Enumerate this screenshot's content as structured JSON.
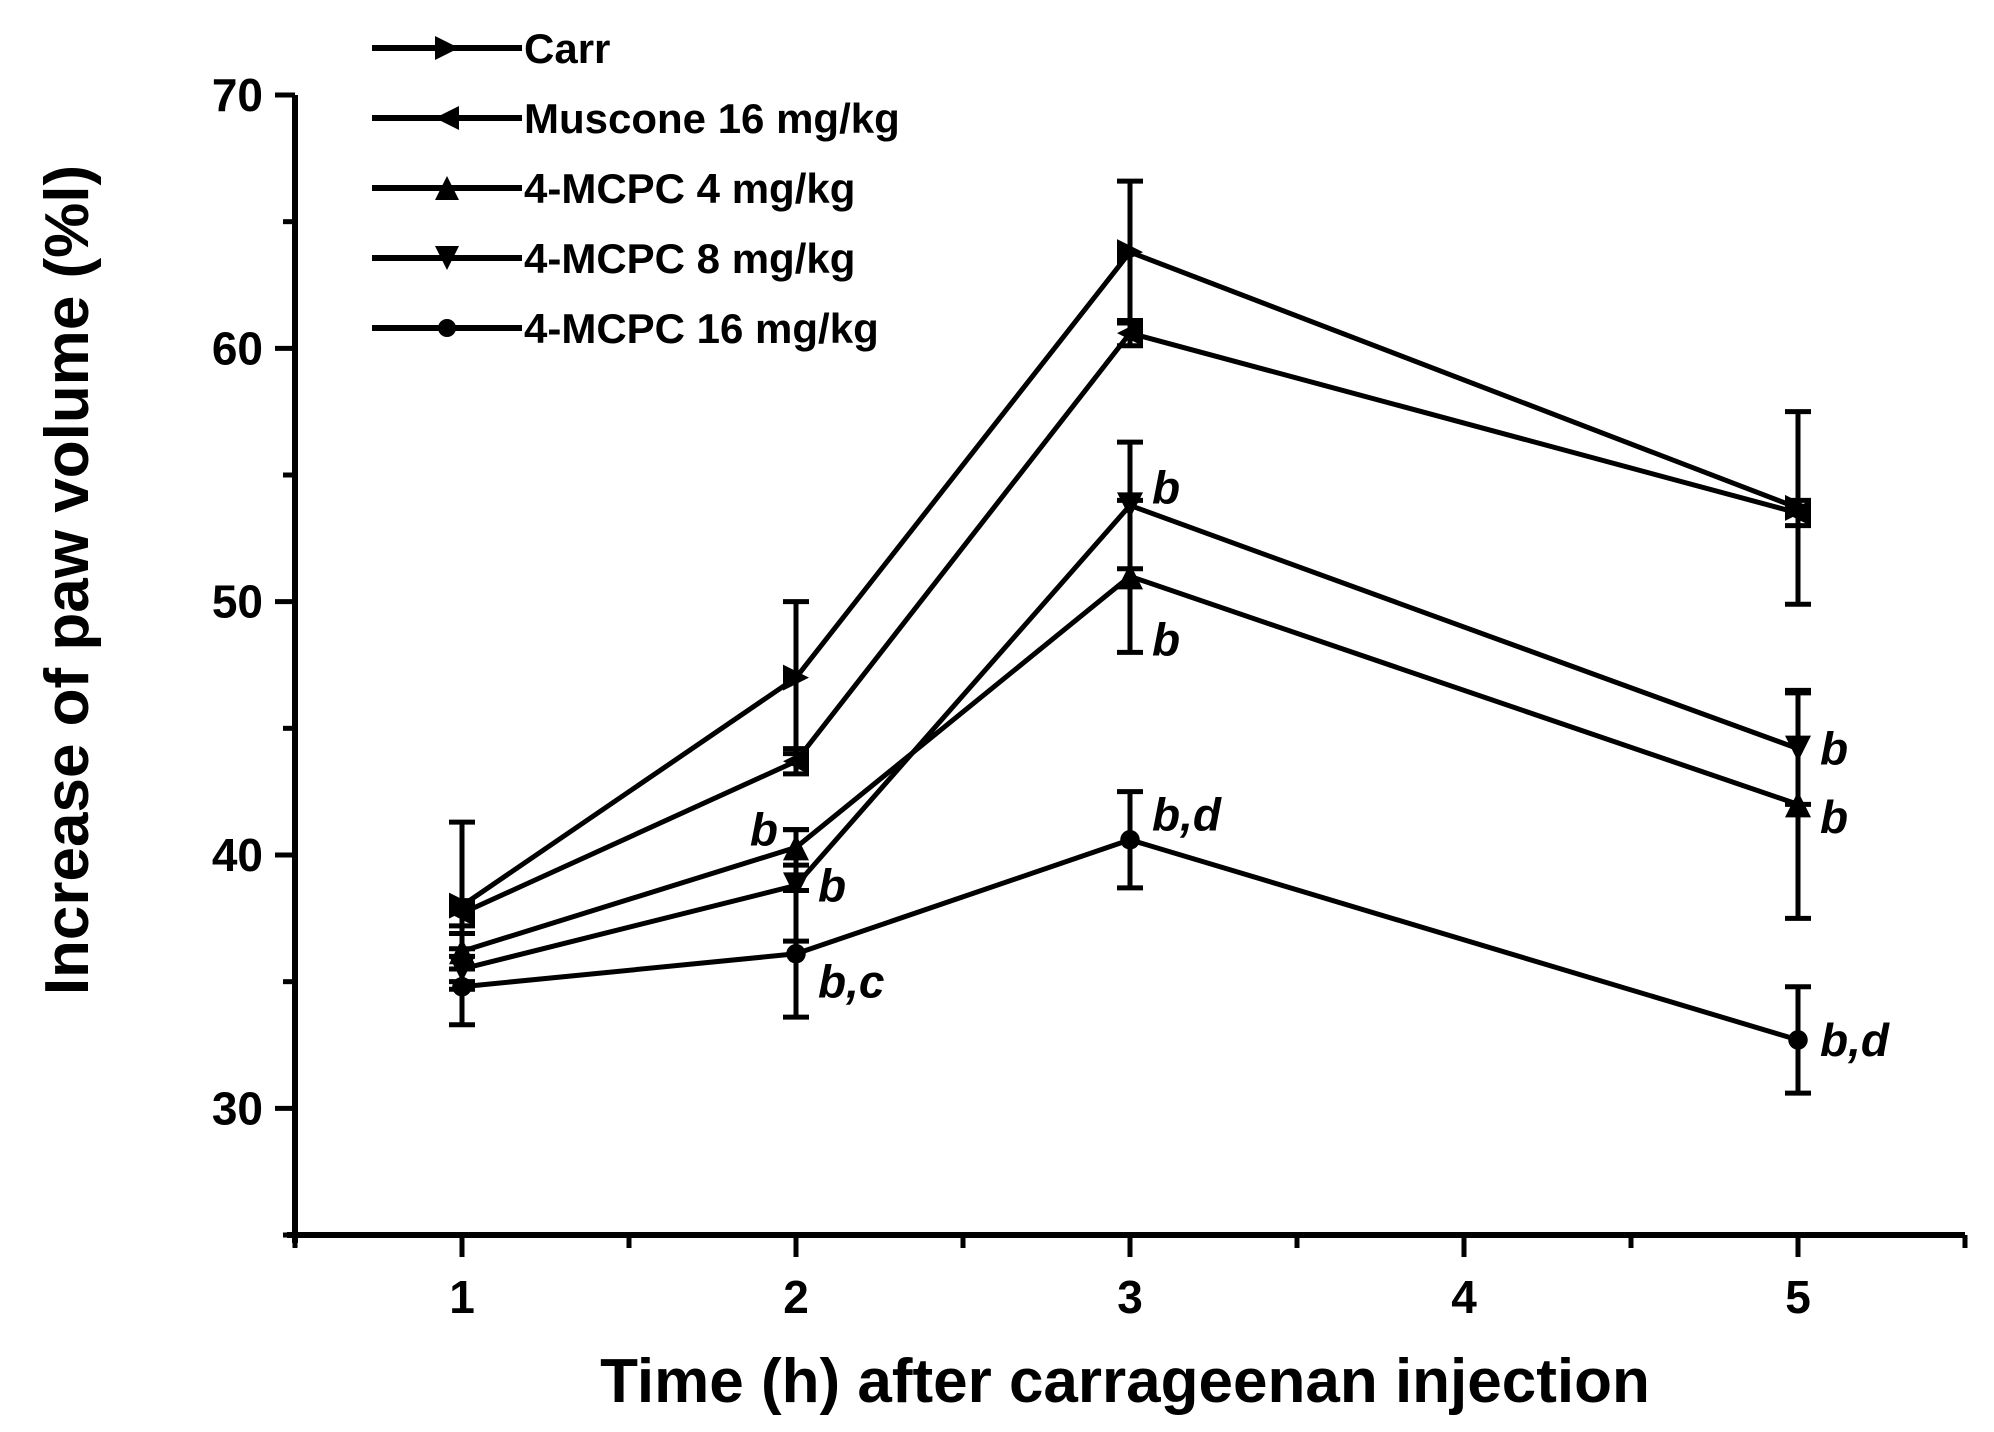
{
  "chart_data": {
    "type": "line",
    "title": "",
    "xlabel": "Time (h) after carrageenan injection",
    "ylabel": "Increase of paw volume (%l)",
    "xlim": [
      0.5,
      5.5
    ],
    "ylim": [
      25,
      70
    ],
    "x_ticks": [
      1,
      2,
      3,
      4,
      5
    ],
    "y_ticks": [
      30,
      40,
      50,
      60,
      70
    ],
    "grid": false,
    "legend_position": "top-left",
    "x": [
      1,
      2,
      3,
      5
    ],
    "series": [
      {
        "name": "Carr",
        "marker": "triangle-right",
        "values": [
          38.0,
          47.0,
          63.8,
          53.7
        ],
        "errors": [
          3.3,
          3.0,
          2.8,
          3.8
        ]
      },
      {
        "name": "Muscone 16 mg/kg",
        "marker": "triangle-left",
        "values": [
          37.7,
          43.7,
          60.6,
          53.5
        ],
        "errors": [
          0.5,
          0.5,
          0.5,
          0.5
        ]
      },
      {
        "name": "4-MCPC 4 mg/kg",
        "marker": "triangle-up",
        "values": [
          36.2,
          40.3,
          51.0,
          42.0
        ],
        "errors": [
          0.7,
          0.7,
          3.0,
          4.5
        ]
      },
      {
        "name": "4-MCPC 8 mg/kg",
        "marker": "triangle-down",
        "values": [
          35.5,
          38.8,
          53.8,
          44.2
        ],
        "errors": [
          0.5,
          2.2,
          2.5,
          2.2
        ]
      },
      {
        "name": "4-MCPC 16 mg/kg",
        "marker": "circle",
        "values": [
          34.8,
          36.1,
          40.6,
          32.7
        ],
        "errors": [
          1.5,
          2.5,
          1.9,
          2.1
        ]
      }
    ],
    "annotations": [
      {
        "text": "b",
        "x": 2,
        "y": 41.0,
        "side": "left"
      },
      {
        "text": "b",
        "x": 2,
        "y": 38.8,
        "side": "right"
      },
      {
        "text": "b,c",
        "x": 2,
        "y": 35.0,
        "side": "right"
      },
      {
        "text": "b",
        "x": 3,
        "y": 54.5,
        "side": "right"
      },
      {
        "text": "b",
        "x": 3,
        "y": 48.5,
        "side": "right"
      },
      {
        "text": "b,d",
        "x": 3,
        "y": 41.6,
        "side": "right"
      },
      {
        "text": "b",
        "x": 5,
        "y": 44.2,
        "side": "right"
      },
      {
        "text": "b",
        "x": 5,
        "y": 41.5,
        "side": "right"
      },
      {
        "text": "b,d",
        "x": 5,
        "y": 32.7,
        "side": "right"
      }
    ]
  }
}
